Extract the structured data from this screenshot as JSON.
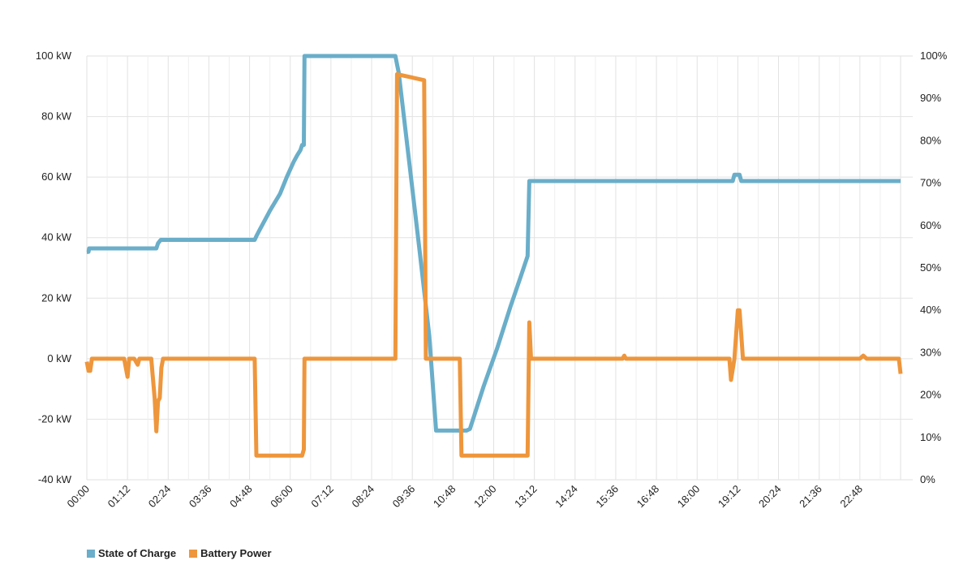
{
  "colors": {
    "soc": "#6aaec9",
    "power": "#ee963c",
    "grid": "#e2e2e2"
  },
  "chart_data": {
    "type": "line",
    "grid": true,
    "legend_position": "bottom-left",
    "x_axis": {
      "range_hours": [
        0,
        24
      ],
      "tick_labels": [
        "00:00",
        "01:12",
        "02:24",
        "03:36",
        "04:48",
        "06:00",
        "07:12",
        "08:24",
        "09:36",
        "10:48",
        "12:00",
        "13:12",
        "14:24",
        "15:36",
        "16:48",
        "18:00",
        "19:12",
        "20:24",
        "21:36",
        "22:48"
      ]
    },
    "y_left": {
      "range": [
        -40,
        100
      ],
      "tick_labels": [
        "100 kW",
        "80 kW",
        "60 kW",
        "40 kW",
        "20 kW",
        "0 kW",
        "-20 kW",
        "-40 kW"
      ]
    },
    "y_right": {
      "range": [
        0,
        100
      ],
      "tick_labels": [
        "100%",
        "90%",
        "80%",
        "70%",
        "60%",
        "50%",
        "40%",
        "30%",
        "20%",
        "10%",
        "0%"
      ]
    },
    "series": [
      {
        "name": "State of Charge",
        "axis": "right",
        "points": [
          [
            0.0,
            53.8
          ],
          [
            0.05,
            53.8
          ],
          [
            0.07,
            54.6
          ],
          [
            2.05,
            54.6
          ],
          [
            2.1,
            55.8
          ],
          [
            2.18,
            56.6
          ],
          [
            4.95,
            56.6
          ],
          [
            5.0,
            57.5
          ],
          [
            5.1,
            59.0
          ],
          [
            5.3,
            62.0
          ],
          [
            5.4,
            63.5
          ],
          [
            5.55,
            65.5
          ],
          [
            5.7,
            67.5
          ],
          [
            5.9,
            71.5
          ],
          [
            6.1,
            75.0
          ],
          [
            6.2,
            76.5
          ],
          [
            6.3,
            77.8
          ],
          [
            6.35,
            79.0
          ],
          [
            6.4,
            79.0
          ],
          [
            6.42,
            100
          ],
          [
            9.1,
            100
          ],
          [
            9.2,
            96.0
          ],
          [
            9.8,
            55.0
          ],
          [
            10.1,
            34.0
          ],
          [
            10.3,
            11.6
          ],
          [
            11.2,
            11.6
          ],
          [
            11.3,
            12.0
          ],
          [
            11.7,
            22.0
          ],
          [
            12.1,
            31.0
          ],
          [
            12.5,
            41.0
          ],
          [
            12.8,
            48.0
          ],
          [
            13.0,
            52.8
          ],
          [
            13.05,
            70.5
          ],
          [
            19.05,
            70.5
          ],
          [
            19.1,
            72.0
          ],
          [
            19.25,
            72.0
          ],
          [
            19.3,
            70.5
          ],
          [
            24.0,
            70.5
          ]
        ]
      },
      {
        "name": "Battery Power",
        "axis": "left",
        "points": [
          [
            0.0,
            -1
          ],
          [
            0.05,
            -4
          ],
          [
            0.1,
            -4
          ],
          [
            0.15,
            0
          ],
          [
            1.1,
            0
          ],
          [
            1.2,
            -6
          ],
          [
            1.25,
            0
          ],
          [
            1.4,
            0
          ],
          [
            1.5,
            -2
          ],
          [
            1.55,
            0
          ],
          [
            1.9,
            0
          ],
          [
            2.0,
            -13
          ],
          [
            2.05,
            -24
          ],
          [
            2.1,
            -14
          ],
          [
            2.15,
            -13
          ],
          [
            2.2,
            -3
          ],
          [
            2.25,
            0
          ],
          [
            4.95,
            0
          ],
          [
            5.0,
            -32
          ],
          [
            6.35,
            -32
          ],
          [
            6.4,
            -30
          ],
          [
            6.42,
            0
          ],
          [
            9.1,
            0
          ],
          [
            9.15,
            94
          ],
          [
            9.95,
            92
          ],
          [
            10.0,
            0
          ],
          [
            11.0,
            0
          ],
          [
            11.05,
            -32
          ],
          [
            13.0,
            -32
          ],
          [
            13.05,
            12
          ],
          [
            13.1,
            0
          ],
          [
            15.8,
            0
          ],
          [
            15.85,
            1
          ],
          [
            15.9,
            0
          ],
          [
            18.95,
            0
          ],
          [
            19.0,
            -7
          ],
          [
            19.1,
            0
          ],
          [
            19.2,
            16
          ],
          [
            19.25,
            16
          ],
          [
            19.35,
            0
          ],
          [
            22.8,
            0
          ],
          [
            22.9,
            1
          ],
          [
            23.0,
            0
          ],
          [
            23.95,
            0
          ],
          [
            24.0,
            -5
          ]
        ]
      }
    ]
  }
}
